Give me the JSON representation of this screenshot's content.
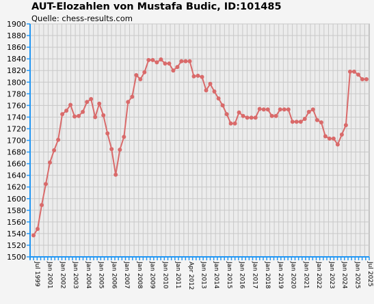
{
  "chart_data": {
    "type": "line",
    "title": "AUT-Elozahlen von Mustafa Budic, ID:101485",
    "subtitle": "Quelle: chess-results.com",
    "ylim": [
      1500,
      1900
    ],
    "y_ticks": [
      1500,
      1520,
      1540,
      1560,
      1580,
      1600,
      1620,
      1640,
      1660,
      1680,
      1700,
      1720,
      1740,
      1760,
      1780,
      1800,
      1820,
      1840,
      1860,
      1880,
      1900
    ],
    "grid": true,
    "x_tick_labels": [
      "Jul 1999",
      "Jan 2001",
      "Jan 2002",
      "Jan 2003",
      "Jan 2004",
      "Jan 2005",
      "Jan 2006",
      "Jan 2007",
      "Jan 2008",
      "Jan 2009",
      "Jan 2010",
      "Jan 2011",
      "Apr 2012",
      "Jan 2013",
      "Jan 2014",
      "Jan 2015",
      "Jan 2016",
      "Jan 2017",
      "Jan 2018",
      "Jan 2019",
      "Jan 2020",
      "Jan 2021",
      "Jan 2022",
      "Jan 2023",
      "Jan 2024",
      "Jan 2025",
      "Jul 2025"
    ],
    "series": [
      {
        "color": "#d96a6a",
        "values": [
          1537,
          1548,
          1589,
          1625,
          1662,
          1683,
          1701,
          1745,
          1751,
          1761,
          1741,
          1742,
          1749,
          1766,
          1771,
          1740,
          1763,
          1743,
          1712,
          1685,
          1641,
          1684,
          1706,
          1766,
          1775,
          1812,
          1805,
          1817,
          1838,
          1838,
          1834,
          1839,
          1832,
          1832,
          1820,
          1826,
          1836,
          1836,
          1836,
          1810,
          1811,
          1809,
          1786,
          1797,
          1784,
          1772,
          1760,
          1745,
          1729,
          1729,
          1748,
          1742,
          1739,
          1739,
          1739,
          1754,
          1753,
          1753,
          1742,
          1742,
          1753,
          1753,
          1753,
          1732,
          1732,
          1732,
          1737,
          1749,
          1753,
          1735,
          1731,
          1707,
          1703,
          1703,
          1693,
          1710,
          1726,
          1818,
          1818,
          1813,
          1805,
          1805
        ]
      }
    ]
  }
}
